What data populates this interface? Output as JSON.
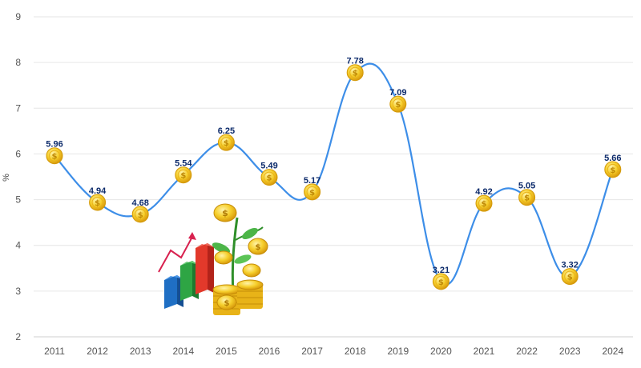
{
  "chart_data": {
    "type": "line",
    "title": "",
    "xlabel": "",
    "ylabel": "%",
    "categories": [
      "2011",
      "2012",
      "2013",
      "2014",
      "2015",
      "2016",
      "2017",
      "2018",
      "2019",
      "2020",
      "2021",
      "2022",
      "2023",
      "2024"
    ],
    "series": [
      {
        "values": [
          5.96,
          4.94,
          4.68,
          5.54,
          6.25,
          5.49,
          5.17,
          7.78,
          7.09,
          3.21,
          4.92,
          5.05,
          3.32,
          5.66
        ]
      }
    ],
    "data_labels": [
      "5.96",
      "4.94",
      "4.68",
      "5.54",
      "6.25",
      "5.49",
      "5.17",
      "7.78",
      "7.09",
      "3.21",
      "4.92",
      "5.05",
      "3.32",
      "5.66"
    ],
    "ylim": [
      2,
      9
    ],
    "yticks": [
      "2",
      "3",
      "4",
      "5",
      "6",
      "7",
      "8",
      "9"
    ],
    "grid": true,
    "line_color": "#3d8ee8",
    "marker_icon": "gold-dollar-coin-icon",
    "decoration_icon": "growth-bar-chart-with-money-plant-and-coins-icon"
  }
}
